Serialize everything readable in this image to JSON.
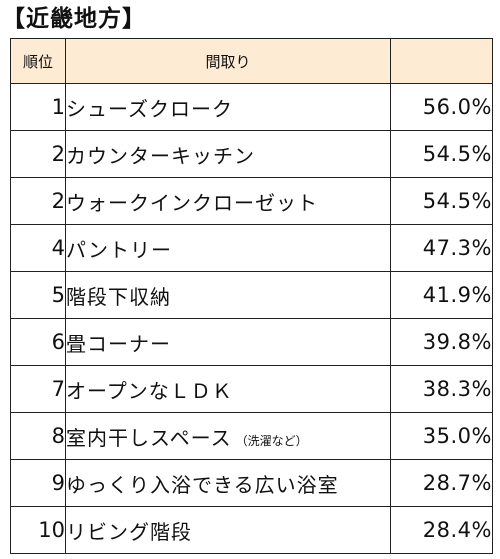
{
  "title": "【近畿地方】",
  "table": {
    "headers": {
      "rank": "順位",
      "layout": "間取り",
      "percent": ""
    },
    "rows": [
      {
        "rank": "1",
        "layout": "シューズクローク",
        "note": "",
        "percent": "56.0%"
      },
      {
        "rank": "2",
        "layout": "カウンターキッチン",
        "note": "",
        "percent": "54.5%"
      },
      {
        "rank": "2",
        "layout": "ウォークインクローゼット",
        "note": "",
        "percent": "54.5%"
      },
      {
        "rank": "4",
        "layout": "パントリー",
        "note": "",
        "percent": "47.3%"
      },
      {
        "rank": "5",
        "layout": "階段下収納",
        "note": "",
        "percent": "41.9%"
      },
      {
        "rank": "6",
        "layout": "畳コーナー",
        "note": "",
        "percent": "39.8%"
      },
      {
        "rank": "7",
        "layout": "オープンなＬＤＫ",
        "note": "",
        "percent": "38.3%"
      },
      {
        "rank": "8",
        "layout": "室内干しスペース",
        "note": "（洗濯など）",
        "percent": "35.0%"
      },
      {
        "rank": "9",
        "layout": "ゆっくり入浴できる広い浴室",
        "note": "",
        "percent": "28.7%"
      },
      {
        "rank": "10",
        "layout": "リビング階段",
        "note": "",
        "percent": "28.4%"
      }
    ]
  }
}
